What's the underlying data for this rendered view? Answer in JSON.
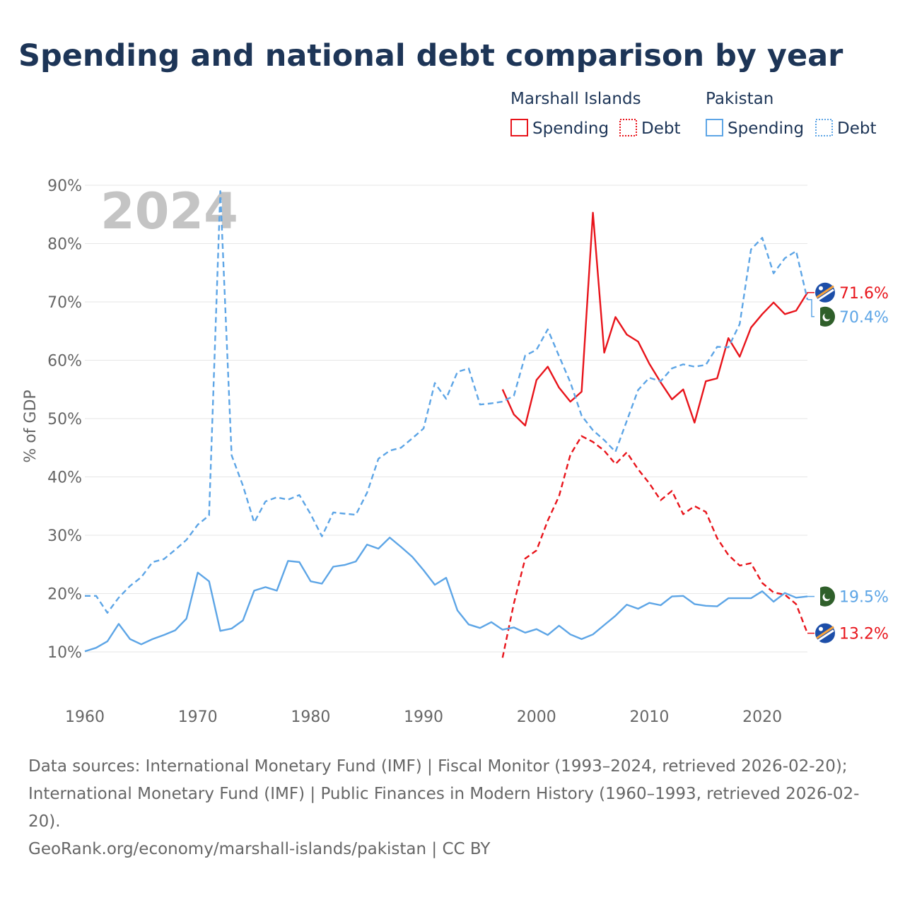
{
  "colors": {
    "title": "#1d3557",
    "marshall": "#e8141b",
    "pakistan": "#5da5e6",
    "grid": "#e6e6e6",
    "axis_text": "#666666",
    "watermark": "#c4c4c4"
  },
  "footer": {
    "source_line_1": "Data sources: International Monetary Fund (IMF) | Fiscal Monitor (1993–2024, retrieved 2026-02-20);",
    "source_line_2": "International Monetary Fund (IMF) | Public Finances in Modern History (1960–1993, retrieved 2026-02-",
    "source_line_3": "20).",
    "attribution": "GeoRank.org/economy/marshall-islands/pakistan | CC BY"
  },
  "chart_data": {
    "type": "line",
    "title": "Spending and national debt comparison by year",
    "ylabel": "% of GDP",
    "xlabel": "",
    "year_watermark": "2024",
    "xlim": [
      1960,
      2024
    ],
    "ylim": [
      10,
      90
    ],
    "x_ticks": [
      1960,
      1970,
      1980,
      1990,
      2000,
      2010,
      2020
    ],
    "y_ticks": [
      10,
      20,
      30,
      40,
      50,
      60,
      70,
      80,
      90
    ],
    "y_tick_labels": [
      "10%",
      "20%",
      "30%",
      "40%",
      "50%",
      "60%",
      "70%",
      "80%",
      "90%"
    ],
    "grid": true,
    "legend": {
      "position": "top-right",
      "groups": [
        {
          "country": "Marshall Islands",
          "items": [
            "Spending",
            "Debt"
          ]
        },
        {
          "country": "Pakistan",
          "items": [
            "Spending",
            "Debt"
          ]
        }
      ]
    },
    "series": [
      {
        "name": "Marshall Islands Spending",
        "country": "Marshall Islands",
        "measure": "Spending",
        "style": "solid",
        "end_label": "71.6%",
        "x": [
          1997,
          1998,
          1999,
          2000,
          2001,
          2002,
          2003,
          2004,
          2005,
          2006,
          2007,
          2008,
          2009,
          2010,
          2011,
          2012,
          2013,
          2014,
          2015,
          2016,
          2017,
          2018,
          2019,
          2020,
          2021,
          2022,
          2023,
          2024
        ],
        "values": [
          55.0,
          50.7,
          48.8,
          56.6,
          58.9,
          55.3,
          52.9,
          54.6,
          85.3,
          61.3,
          67.4,
          64.4,
          63.2,
          59.4,
          56.2,
          53.3,
          55.0,
          49.3,
          56.4,
          56.9,
          63.8,
          60.6,
          65.6,
          67.9,
          69.9,
          67.9,
          68.5,
          71.6
        ]
      },
      {
        "name": "Marshall Islands Debt",
        "country": "Marshall Islands",
        "measure": "Debt",
        "style": "dashed",
        "end_label": "13.2%",
        "x": [
          1997,
          1998,
          1999,
          2000,
          2001,
          2002,
          2003,
          2004,
          2005,
          2006,
          2007,
          2008,
          2009,
          2010,
          2011,
          2012,
          2013,
          2014,
          2015,
          2016,
          2017,
          2018,
          2019,
          2020,
          2021,
          2022,
          2023,
          2024
        ],
        "values": [
          9.0,
          18.3,
          26.0,
          27.4,
          32.5,
          36.7,
          43.8,
          47.0,
          46.0,
          44.5,
          42.2,
          44.2,
          41.3,
          38.9,
          36.0,
          37.6,
          33.6,
          35.0,
          34.0,
          29.5,
          26.6,
          24.8,
          25.2,
          21.8,
          20.2,
          19.8,
          18.2,
          13.2
        ]
      },
      {
        "name": "Pakistan Spending",
        "country": "Pakistan",
        "measure": "Spending",
        "style": "solid",
        "end_label": "19.5%",
        "x": [
          1960,
          1961,
          1962,
          1963,
          1964,
          1965,
          1966,
          1967,
          1968,
          1969,
          1970,
          1971,
          1972,
          1973,
          1974,
          1975,
          1976,
          1977,
          1978,
          1979,
          1980,
          1981,
          1982,
          1983,
          1984,
          1985,
          1986,
          1987,
          1988,
          1989,
          1990,
          1991,
          1992,
          1993,
          1994,
          1995,
          1996,
          1997,
          1998,
          1999,
          2000,
          2001,
          2002,
          2003,
          2004,
          2005,
          2006,
          2007,
          2008,
          2009,
          2010,
          2011,
          2012,
          2013,
          2014,
          2015,
          2016,
          2017,
          2018,
          2019,
          2020,
          2021,
          2022,
          2023,
          2024
        ],
        "values": [
          10.1,
          10.7,
          11.8,
          14.8,
          12.2,
          11.3,
          12.2,
          12.9,
          13.7,
          15.7,
          23.6,
          22.1,
          13.6,
          14.0,
          15.4,
          20.5,
          21.1,
          20.5,
          25.6,
          25.4,
          22.1,
          21.7,
          24.6,
          24.9,
          25.5,
          28.4,
          27.7,
          29.6,
          28.0,
          26.3,
          24.0,
          21.5,
          22.7,
          17.1,
          14.7,
          14.1,
          15.1,
          13.8,
          14.2,
          13.3,
          13.9,
          12.9,
          14.5,
          13.0,
          12.2,
          13.0,
          14.6,
          16.2,
          18.1,
          17.4,
          18.4,
          18.0,
          19.5,
          19.6,
          18.2,
          17.9,
          17.8,
          19.2,
          19.2,
          19.2,
          20.4,
          18.6,
          20.1,
          19.3,
          19.5
        ]
      },
      {
        "name": "Pakistan Debt",
        "country": "Pakistan",
        "measure": "Debt",
        "style": "dashed",
        "end_label": "70.4%",
        "x": [
          1960,
          1961,
          1962,
          1963,
          1964,
          1965,
          1966,
          1967,
          1968,
          1969,
          1970,
          1971,
          1972,
          1973,
          1974,
          1975,
          1976,
          1977,
          1978,
          1979,
          1980,
          1981,
          1982,
          1983,
          1984,
          1985,
          1986,
          1987,
          1988,
          1989,
          1990,
          1991,
          1992,
          1993,
          1994,
          1995,
          1996,
          1997,
          1998,
          1999,
          2000,
          2001,
          2002,
          2003,
          2004,
          2005,
          2006,
          2007,
          2008,
          2009,
          2010,
          2011,
          2012,
          2013,
          2014,
          2015,
          2016,
          2017,
          2018,
          2019,
          2020,
          2021,
          2022,
          2023,
          2024
        ],
        "values": [
          19.6,
          19.6,
          16.7,
          19.3,
          21.3,
          22.8,
          25.4,
          25.9,
          27.5,
          29.2,
          31.8,
          33.4,
          89.0,
          43.7,
          38.5,
          32.2,
          35.8,
          36.5,
          36.1,
          36.9,
          33.6,
          29.8,
          33.9,
          33.7,
          33.5,
          37.3,
          43.1,
          44.5,
          45.0,
          46.6,
          48.3,
          56.1,
          53.4,
          58.0,
          58.6,
          52.4,
          52.6,
          52.9,
          53.9,
          60.8,
          61.8,
          65.3,
          60.7,
          56.2,
          50.5,
          48.0,
          46.3,
          44.3,
          49.6,
          54.9,
          57.0,
          56.4,
          58.6,
          59.3,
          58.9,
          59.2,
          62.3,
          62.2,
          66.2,
          79.0,
          81.0,
          74.9,
          77.5,
          78.7,
          70.4
        ]
      }
    ]
  }
}
